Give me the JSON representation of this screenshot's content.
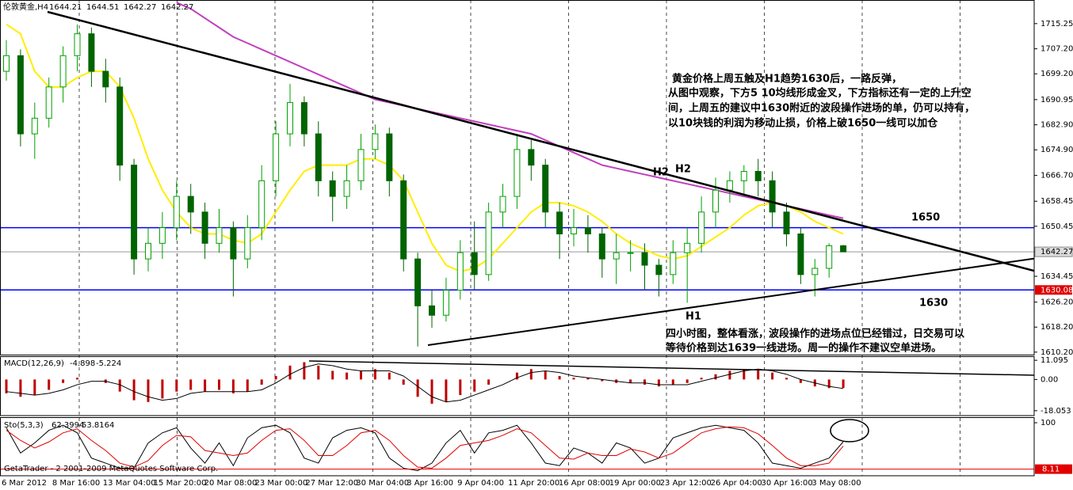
{
  "chart_data": {
    "type": "candlestick",
    "symbol": "伦敦黄金,H4",
    "ohlc": [
      [
        1700,
        1710,
        1697,
        1705
      ],
      [
        1705,
        1707,
        1676,
        1680
      ],
      [
        1680,
        1690,
        1672,
        1685
      ],
      [
        1685,
        1698,
        1682,
        1695
      ],
      [
        1695,
        1708,
        1690,
        1705
      ],
      [
        1705,
        1715,
        1700,
        1712
      ],
      [
        1712,
        1714,
        1695,
        1700
      ],
      [
        1700,
        1704,
        1690,
        1695
      ],
      [
        1695,
        1698,
        1665,
        1670
      ],
      [
        1670,
        1672,
        1635,
        1640
      ],
      [
        1640,
        1650,
        1636,
        1645
      ],
      [
        1645,
        1655,
        1640,
        1650
      ],
      [
        1650,
        1665,
        1646,
        1660
      ],
      [
        1660,
        1664,
        1648,
        1655
      ],
      [
        1655,
        1658,
        1640,
        1645
      ],
      [
        1645,
        1656,
        1642,
        1650
      ],
      [
        1650,
        1652,
        1628,
        1640
      ],
      [
        1640,
        1654,
        1637,
        1650
      ],
      [
        1650,
        1670,
        1646,
        1665
      ],
      [
        1665,
        1684,
        1660,
        1680
      ],
      [
        1680,
        1696,
        1676,
        1690
      ],
      [
        1690,
        1692,
        1676,
        1680
      ],
      [
        1680,
        1684,
        1660,
        1665
      ],
      [
        1665,
        1668,
        1652,
        1660
      ],
      [
        1660,
        1670,
        1656,
        1665
      ],
      [
        1665,
        1680,
        1662,
        1675
      ],
      [
        1675,
        1683,
        1672,
        1680
      ],
      [
        1680,
        1682,
        1660,
        1665
      ],
      [
        1665,
        1667,
        1636,
        1640
      ],
      [
        1640,
        1642,
        1612,
        1625
      ],
      [
        1625,
        1630,
        1618,
        1622
      ],
      [
        1622,
        1634,
        1620,
        1630
      ],
      [
        1630,
        1646,
        1627,
        1642
      ],
      [
        1642,
        1652,
        1630,
        1635
      ],
      [
        1635,
        1658,
        1633,
        1655
      ],
      [
        1655,
        1664,
        1650,
        1660
      ],
      [
        1660,
        1680,
        1656,
        1675
      ],
      [
        1675,
        1678,
        1665,
        1670
      ],
      [
        1670,
        1672,
        1650,
        1655
      ],
      [
        1655,
        1658,
        1640,
        1648
      ],
      [
        1648,
        1656,
        1644,
        1650
      ],
      [
        1650,
        1654,
        1642,
        1648
      ],
      [
        1648,
        1650,
        1634,
        1640
      ],
      [
        1640,
        1648,
        1632,
        1642
      ],
      [
        1642,
        1646,
        1636,
        1642
      ],
      [
        1642,
        1645,
        1630,
        1638
      ],
      [
        1638,
        1640,
        1628,
        1635
      ],
      [
        1635,
        1646,
        1632,
        1642
      ],
      [
        1642,
        1650,
        1626,
        1645
      ],
      [
        1645,
        1660,
        1642,
        1655
      ],
      [
        1655,
        1666,
        1650,
        1662
      ],
      [
        1662,
        1668,
        1658,
        1665
      ],
      [
        1665,
        1670,
        1660,
        1668
      ],
      [
        1668,
        1672,
        1660,
        1665
      ],
      [
        1665,
        1668,
        1650,
        1655
      ],
      [
        1655,
        1658,
        1644,
        1648
      ],
      [
        1648,
        1650,
        1632,
        1635
      ],
      [
        1635,
        1640,
        1628,
        1637
      ],
      [
        1637,
        1645,
        1634,
        1644.21
      ],
      [
        1644.21,
        1644.51,
        1642.27,
        1642.27
      ]
    ],
    "up_color": "#00a000",
    "down_color": "#006400",
    "ylim": [
      1609.4,
      1722.8
    ],
    "yticks": [
      1715.25,
      {
        "value": 1707.2,
        "label": "1707.20"
      },
      {
        "value": 1699.2,
        "label": "1699.20"
      },
      1690.95,
      {
        "value": 1682.9,
        "label": "1682.90"
      },
      {
        "value": 1674.9,
        "label": "1674.90"
      },
      {
        "value": 1666.7,
        "label": "1666.70"
      },
      1658.45,
      1650.45,
      1634.45,
      {
        "value": 1626.2,
        "label": "1626.20"
      },
      {
        "value": 1618.2,
        "label": "1618.20"
      },
      {
        "value": 1610.2,
        "label": "1610.20"
      }
    ],
    "levels": [
      {
        "value": 1650,
        "label": "1650",
        "color": "#0000ff"
      },
      {
        "value": 1630.08,
        "label": "1630",
        "color": "#0000ff"
      }
    ],
    "moving_averages": [
      {
        "color": "#ffee00",
        "values": [
          1715,
          1712,
          1700,
          1695,
          1695,
          1698,
          1700,
          1700,
          1695,
          1685,
          1672,
          1662,
          1655,
          1650,
          1648,
          1648,
          1646,
          1645,
          1648,
          1655,
          1662,
          1668,
          1670,
          1670,
          1670,
          1672,
          1672,
          1670,
          1665,
          1655,
          1645,
          1638,
          1636,
          1637,
          1640,
          1645,
          1650,
          1655,
          1658,
          1658,
          1657,
          1655,
          1652,
          1648,
          1645,
          1643,
          1641,
          1640,
          1641,
          1644,
          1647,
          1650,
          1654,
          1657,
          1658,
          1657,
          1655,
          1652,
          1650,
          1648
        ]
      },
      {
        "color": "#c040c0",
        "values": [
          null,
          null,
          null,
          null,
          null,
          null,
          null,
          null,
          null,
          null,
          null,
          null,
          1722,
          1720,
          1717,
          1714,
          1711,
          1709,
          1707,
          1705,
          1703,
          1701,
          1699,
          1697,
          1695,
          1693,
          1691,
          1690,
          1689,
          1688,
          1687,
          1686,
          1685,
          1684,
          1683,
          1682,
          1681,
          1680,
          1678,
          1676,
          1674,
          1672,
          1670,
          1669,
          1668,
          1667,
          1666,
          1665,
          1664,
          1663,
          1662,
          1661,
          1660,
          1659,
          1658,
          1657,
          1656,
          1655,
          1654,
          1653
        ]
      }
    ],
    "annotations": [
      "黄金价格上周五触及H1趋势1630后，一路反弹，",
      "从图中观察，下方5 10均线形成金叉，下方指标还有一定的上升空",
      "间，上周五的建议中1630附近的波段操作进场的单，仍可以持有，",
      "以10块钱的利润为移动止损，价格上破1650一线可以加仓",
      "四小时图，整体看涨，波段操作的进场点位已经错过，日交易可以",
      "等待价格到达1639一线进场。周一的操作不建议空单进场。"
    ],
    "wave_labels": [
      "H2",
      "H2",
      "H1"
    ],
    "x_labels": [
      "6 Mar 2012",
      "8 Mar 16:00",
      "13 Mar 04:00",
      "15 Mar 20:00",
      "20 Mar 08:00",
      "23 Mar 00:00",
      "27 Mar 12:00",
      "30 Mar 04:00",
      "3 Apr 16:00",
      "9 Apr 04:00",
      "11 Apr 20:00",
      "16 Apr 08:00",
      "19 Apr 00:00",
      "23 Apr 12:00",
      "26 Apr 04:00",
      "30 Apr 16:00",
      "3 May 08:00"
    ],
    "macd": {
      "label": "MACD(12,26,9)",
      "hist_color": "#c00000",
      "histogram": [
        -8,
        -10,
        -9,
        -6,
        -2,
        1,
        0,
        -2,
        -7,
        -12,
        -13,
        -11,
        -7,
        -6,
        -7,
        -6,
        -8,
        -7,
        -3,
        2,
        8,
        10,
        8,
        5,
        4,
        5,
        6,
        4,
        -3,
        -10,
        -14,
        -13,
        -9,
        -7,
        -3,
        0,
        4,
        6,
        5,
        2,
        1,
        1,
        -1,
        -2,
        -2,
        -3,
        -4,
        -3,
        -2,
        1,
        3,
        5,
        6,
        6,
        4,
        1,
        -2,
        -4,
        -5,
        -4.898
      ],
      "signal": [
        -7,
        -8,
        -9,
        -8,
        -6,
        -3,
        -1,
        -1,
        -3,
        -7,
        -10,
        -12,
        -11,
        -8,
        -7,
        -7,
        -7,
        -7,
        -6,
        -2,
        3,
        7,
        9,
        8,
        6,
        5,
        5,
        5,
        2,
        -4,
        -10,
        -13,
        -12,
        -9,
        -6,
        -3,
        1,
        4,
        5,
        4,
        2,
        1,
        0,
        -1,
        -2,
        -2,
        -3,
        -3,
        -3,
        -1,
        1,
        3,
        5,
        6,
        5,
        3,
        0,
        -2,
        -4,
        -5.224
      ],
      "ylim": [
        -20.87,
        13.45
      ],
      "yticks": [
        11.095,
        {
          "value": 0,
          "label": "0.00"
        },
        -18.053
      ]
    },
    "stochastic": {
      "label": "Sto(5,3,3)",
      "main": [
        90,
        40,
        60,
        85,
        95,
        80,
        30,
        20,
        10,
        10,
        60,
        80,
        90,
        50,
        20,
        60,
        15,
        70,
        90,
        95,
        80,
        30,
        20,
        70,
        85,
        90,
        80,
        30,
        10,
        5,
        20,
        60,
        85,
        40,
        80,
        85,
        95,
        60,
        20,
        15,
        50,
        40,
        20,
        60,
        50,
        20,
        30,
        70,
        80,
        90,
        95,
        90,
        85,
        60,
        20,
        15,
        10,
        20,
        30,
        62.3994
      ],
      "signal": [
        85,
        65,
        50,
        62,
        80,
        88,
        65,
        45,
        20,
        12,
        25,
        55,
        75,
        72,
        45,
        40,
        35,
        40,
        65,
        85,
        88,
        65,
        35,
        35,
        55,
        80,
        85,
        65,
        35,
        12,
        10,
        30,
        55,
        60,
        65,
        75,
        88,
        80,
        55,
        30,
        28,
        40,
        35,
        35,
        48,
        42,
        30,
        40,
        60,
        80,
        88,
        92,
        90,
        78,
        55,
        30,
        15,
        15,
        20,
        53.8164
      ],
      "ylim": [
        -5,
        111
      ],
      "yticks": [
        100
      ],
      "level": 8.11
    },
    "copyright": "GetaTrader - 2 2001-2009 MetaQuotes Software Corp."
  }
}
